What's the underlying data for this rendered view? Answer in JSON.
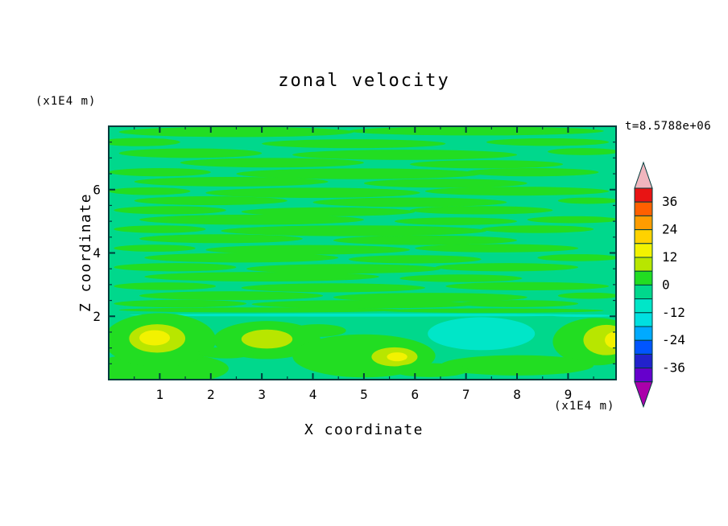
{
  "chart_data": {
    "type": "heatmap",
    "title": "zonal velocity",
    "xlabel": "X coordinate",
    "ylabel": "Z coordinate",
    "x_unit": "(x1E4 m)",
    "y_unit": "(x1E4 m)",
    "timestamp": "t=8.5788e+06",
    "x_range": [
      0,
      9.94
    ],
    "z_range": [
      0,
      8
    ],
    "x_ticks": [
      1,
      2,
      3,
      4,
      5,
      6,
      7,
      8,
      9
    ],
    "z_ticks": [
      2,
      4,
      6
    ],
    "x_minor_step": 0.5,
    "z_minor_step": 0.5,
    "grid": false,
    "frame_color": "#003c3c",
    "colorbar": {
      "position": "right",
      "labels": [
        36,
        24,
        12,
        0,
        -12,
        -24,
        -36
      ],
      "top_value": 42,
      "band_step": 6,
      "band_colors_top_to_bottom": [
        "#e81414",
        "#ff6000",
        "#ff9c00",
        "#ffd200",
        "#f2f200",
        "#b8e600",
        "#22dd22",
        "#00d88c",
        "#00e6c8",
        "#00e0e0",
        "#00aaff",
        "#0055ff",
        "#2222cc",
        "#6600cc"
      ],
      "over_color": "#f0b6be",
      "under_color": "#aa00aa"
    },
    "field": {
      "description": "zonal velocity contour fill; values mostly between -12 and 18, dominated by the -6..0 and 0..6 bands as horizontal streaks; yellow (12..18) maxima near z=1 at x=1, x=3, x=5.6 and right edge; cyan (-12..-6) minimum near x=7.3 z=1.5",
      "background_color": "#00d88c",
      "palette": {
        "g": "#22dd22",
        "yg": "#b8e600",
        "y": "#f2f200",
        "aq": "#00e6c8"
      },
      "features": [
        {
          "c": "g",
          "x": 2.5,
          "z": 7.82,
          "rx": 2.3,
          "ry": 0.16
        },
        {
          "c": "g",
          "x": 7.2,
          "z": 7.85,
          "rx": 2.5,
          "ry": 0.14
        },
        {
          "c": "g",
          "x": 0.6,
          "z": 7.5,
          "rx": 0.8,
          "ry": 0.13
        },
        {
          "c": "g",
          "x": 4.8,
          "z": 7.45,
          "rx": 1.8,
          "ry": 0.14
        },
        {
          "c": "g",
          "x": 8.6,
          "z": 7.5,
          "rx": 1.2,
          "ry": 0.12
        },
        {
          "c": "g",
          "x": 1.6,
          "z": 7.15,
          "rx": 1.4,
          "ry": 0.15
        },
        {
          "c": "g",
          "x": 5.8,
          "z": 7.1,
          "rx": 2.2,
          "ry": 0.16
        },
        {
          "c": "g",
          "x": 9.3,
          "z": 7.2,
          "rx": 0.7,
          "ry": 0.11
        },
        {
          "c": "g",
          "x": 3.2,
          "z": 6.85,
          "rx": 1.8,
          "ry": 0.15
        },
        {
          "c": "g",
          "x": 7.4,
          "z": 6.8,
          "rx": 1.5,
          "ry": 0.13
        },
        {
          "c": "g",
          "x": 1.0,
          "z": 6.55,
          "rx": 1.0,
          "ry": 0.13
        },
        {
          "c": "g",
          "x": 4.9,
          "z": 6.5,
          "rx": 2.4,
          "ry": 0.17
        },
        {
          "c": "g",
          "x": 8.3,
          "z": 6.55,
          "rx": 1.3,
          "ry": 0.13
        },
        {
          "c": "g",
          "x": 2.4,
          "z": 6.25,
          "rx": 1.9,
          "ry": 0.15
        },
        {
          "c": "g",
          "x": 6.6,
          "z": 6.2,
          "rx": 1.6,
          "ry": 0.14
        },
        {
          "c": "g",
          "x": 0.8,
          "z": 5.95,
          "rx": 0.8,
          "ry": 0.12
        },
        {
          "c": "g",
          "x": 4.0,
          "z": 5.9,
          "rx": 2.1,
          "ry": 0.16
        },
        {
          "c": "g",
          "x": 8.0,
          "z": 5.95,
          "rx": 1.8,
          "ry": 0.14
        },
        {
          "c": "g",
          "x": 2.0,
          "z": 5.65,
          "rx": 1.5,
          "ry": 0.14
        },
        {
          "c": "g",
          "x": 5.9,
          "z": 5.6,
          "rx": 1.9,
          "ry": 0.15
        },
        {
          "c": "g",
          "x": 9.4,
          "z": 5.65,
          "rx": 0.6,
          "ry": 0.1
        },
        {
          "c": "g",
          "x": 1.2,
          "z": 5.35,
          "rx": 1.1,
          "ry": 0.13
        },
        {
          "c": "g",
          "x": 4.3,
          "z": 5.3,
          "rx": 1.7,
          "ry": 0.14
        },
        {
          "c": "g",
          "x": 7.3,
          "z": 5.35,
          "rx": 1.4,
          "ry": 0.13
        },
        {
          "c": "g",
          "x": 2.8,
          "z": 5.05,
          "rx": 2.2,
          "ry": 0.16
        },
        {
          "c": "g",
          "x": 6.8,
          "z": 5.0,
          "rx": 1.2,
          "ry": 0.12
        },
        {
          "c": "g",
          "x": 9.1,
          "z": 5.05,
          "rx": 0.9,
          "ry": 0.11
        },
        {
          "c": "g",
          "x": 1.0,
          "z": 4.75,
          "rx": 0.9,
          "ry": 0.12
        },
        {
          "c": "g",
          "x": 4.8,
          "z": 4.7,
          "rx": 2.6,
          "ry": 0.17
        },
        {
          "c": "g",
          "x": 8.4,
          "z": 4.75,
          "rx": 1.1,
          "ry": 0.12
        },
        {
          "c": "g",
          "x": 2.2,
          "z": 4.45,
          "rx": 1.6,
          "ry": 0.14
        },
        {
          "c": "g",
          "x": 6.2,
          "z": 4.4,
          "rx": 1.8,
          "ry": 0.15
        },
        {
          "c": "g",
          "x": 0.9,
          "z": 4.15,
          "rx": 0.8,
          "ry": 0.11
        },
        {
          "c": "g",
          "x": 3.9,
          "z": 4.1,
          "rx": 2.0,
          "ry": 0.15
        },
        {
          "c": "g",
          "x": 7.6,
          "z": 4.15,
          "rx": 1.6,
          "ry": 0.13
        },
        {
          "c": "g",
          "x": 2.6,
          "z": 3.85,
          "rx": 1.9,
          "ry": 0.15
        },
        {
          "c": "g",
          "x": 6.0,
          "z": 3.8,
          "rx": 1.3,
          "ry": 0.13
        },
        {
          "c": "g",
          "x": 9.2,
          "z": 3.85,
          "rx": 0.8,
          "ry": 0.11
        },
        {
          "c": "g",
          "x": 1.3,
          "z": 3.55,
          "rx": 1.2,
          "ry": 0.13
        },
        {
          "c": "g",
          "x": 4.6,
          "z": 3.5,
          "rx": 1.9,
          "ry": 0.15
        },
        {
          "c": "g",
          "x": 7.8,
          "z": 3.55,
          "rx": 1.4,
          "ry": 0.13
        },
        {
          "c": "g",
          "x": 3.0,
          "z": 3.25,
          "rx": 2.3,
          "ry": 0.15
        },
        {
          "c": "g",
          "x": 6.9,
          "z": 3.2,
          "rx": 1.2,
          "ry": 0.12
        },
        {
          "c": "g",
          "x": 1.1,
          "z": 2.95,
          "rx": 1.0,
          "ry": 0.12
        },
        {
          "c": "g",
          "x": 4.4,
          "z": 2.9,
          "rx": 1.8,
          "ry": 0.14
        },
        {
          "c": "g",
          "x": 8.2,
          "z": 2.95,
          "rx": 1.6,
          "ry": 0.13
        },
        {
          "c": "g",
          "x": 2.4,
          "z": 2.65,
          "rx": 1.8,
          "ry": 0.14
        },
        {
          "c": "g",
          "x": 6.3,
          "z": 2.6,
          "rx": 1.9,
          "ry": 0.14
        },
        {
          "c": "g",
          "x": 9.4,
          "z": 2.65,
          "rx": 0.6,
          "ry": 0.1
        },
        {
          "c": "g",
          "x": 1.4,
          "z": 2.4,
          "rx": 1.3,
          "ry": 0.12
        },
        {
          "c": "g",
          "x": 5.0,
          "z": 2.38,
          "rx": 2.2,
          "ry": 0.13
        },
        {
          "c": "g",
          "x": 8.0,
          "z": 2.4,
          "rx": 1.2,
          "ry": 0.11
        },
        {
          "c": "g",
          "x": 3.0,
          "z": 2.2,
          "rx": 2.8,
          "ry": 0.08
        },
        {
          "c": "g",
          "x": 7.5,
          "z": 2.18,
          "rx": 2.2,
          "ry": 0.07
        },
        {
          "c": "aq",
          "x": 5.0,
          "z": 2.04,
          "rx": 4.6,
          "ry": 0.05
        },
        {
          "c": "aq",
          "x": 9.3,
          "z": 2.02,
          "rx": 0.6,
          "ry": 0.04
        },
        {
          "c": "g",
          "x": 1.0,
          "z": 0.35,
          "rx": 1.35,
          "ry": 0.5
        },
        {
          "c": "g",
          "x": 1.0,
          "z": 1.25,
          "rx": 1.1,
          "ry": 0.85
        },
        {
          "c": "yg",
          "x": 0.95,
          "z": 1.3,
          "rx": 0.55,
          "ry": 0.45
        },
        {
          "c": "y",
          "x": 0.9,
          "z": 1.32,
          "rx": 0.3,
          "ry": 0.24
        },
        {
          "c": "g",
          "x": 3.1,
          "z": 1.25,
          "rx": 1.05,
          "ry": 0.6
        },
        {
          "c": "yg",
          "x": 3.1,
          "z": 1.28,
          "rx": 0.5,
          "ry": 0.3
        },
        {
          "c": "g",
          "x": 5.0,
          "z": 0.75,
          "rx": 1.4,
          "ry": 0.68
        },
        {
          "c": "yg",
          "x": 5.6,
          "z": 0.72,
          "rx": 0.45,
          "ry": 0.3
        },
        {
          "c": "y",
          "x": 5.65,
          "z": 0.72,
          "rx": 0.2,
          "ry": 0.14
        },
        {
          "c": "aq",
          "x": 7.3,
          "z": 1.45,
          "rx": 1.05,
          "ry": 0.52
        },
        {
          "c": "g",
          "x": 9.55,
          "z": 1.2,
          "rx": 0.85,
          "ry": 0.75
        },
        {
          "c": "yg",
          "x": 9.75,
          "z": 1.25,
          "rx": 0.45,
          "ry": 0.48
        },
        {
          "c": "y",
          "x": 9.92,
          "z": 1.25,
          "rx": 0.2,
          "ry": 0.26
        },
        {
          "c": "g",
          "x": 8.0,
          "z": 0.45,
          "rx": 1.5,
          "ry": 0.32
        },
        {
          "c": "g",
          "x": 6.3,
          "z": 0.3,
          "rx": 0.75,
          "ry": 0.22
        },
        {
          "c": "g",
          "x": 2.3,
          "z": 0.85,
          "rx": 0.55,
          "ry": 0.18
        },
        {
          "c": "g",
          "x": 4.1,
          "z": 1.55,
          "rx": 0.55,
          "ry": 0.2
        }
      ]
    }
  }
}
